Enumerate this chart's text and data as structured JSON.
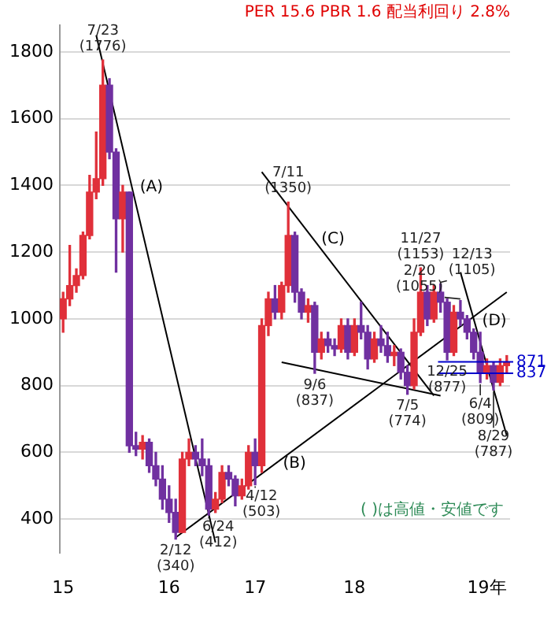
{
  "chart_data": {
    "type": "candlestick",
    "title": "PER 15.6 PBR 1.6 配当利回り 2.8%",
    "categories": [
      "15",
      null,
      null,
      null,
      null,
      null,
      null,
      null,
      null,
      null,
      null,
      null,
      null,
      null,
      null,
      null,
      "16",
      null,
      null,
      null,
      null,
      null,
      null,
      null,
      null,
      null,
      null,
      null,
      null,
      "17",
      null,
      null,
      null,
      null,
      null,
      null,
      null,
      null,
      null,
      null,
      null,
      null,
      null,
      null,
      "18",
      null,
      null,
      null,
      null,
      null,
      null,
      null,
      null,
      null,
      null,
      null,
      null,
      null,
      null,
      null,
      null,
      null,
      null,
      null,
      "19年",
      null,
      null,
      null
    ],
    "series": [
      {
        "type": "candlestick",
        "colors": [
          "#e0303a",
          "#e0303a",
          "#e0303a",
          "#e0303a",
          "#e0303a",
          "#e0303a",
          "#e0303a",
          "#7030a0",
          "#7030a0",
          "#e0303a",
          "#7030a0",
          "#7030a0",
          "#e0303a",
          "#7030a0",
          "#7030a0",
          "#7030a0",
          "#7030a0",
          "#7030a0",
          "#e0303a",
          "#e0303a",
          "#7030a0",
          "#7030a0",
          "#7030a0",
          "#e0303a",
          "#e0303a",
          "#7030a0",
          "#7030a0",
          "#e0303a",
          "#e0303a",
          "#7030a0",
          "#e0303a",
          "#e0303a",
          "#7030a0",
          "#e0303a",
          "#e0303a",
          "#7030a0",
          "#7030a0",
          "#e0303a",
          "#7030a0",
          "#e0303a",
          "#7030a0",
          "#7030a0",
          "#e0303a",
          "#7030a0",
          "#e0303a",
          "#7030a0",
          "#7030a0",
          "#e0303a",
          "#7030a0",
          "#7030a0",
          "#e0303a",
          "#7030a0",
          "#7030a0",
          "#e0303a",
          "#e0303a",
          "#7030a0",
          "#e0303a",
          "#7030a0",
          "#7030a0",
          "#e0303a",
          "#7030a0",
          "#7030a0",
          "#7030a0",
          "#7030a0",
          "#e0303a",
          "#7030a0",
          "#e0303a",
          "#e0303a"
        ],
        "ohlc": [
          [
            1000,
            1080,
            960,
            1060
          ],
          [
            1060,
            1220,
            1040,
            1100
          ],
          [
            1100,
            1150,
            1080,
            1130
          ],
          [
            1130,
            1260,
            1120,
            1250
          ],
          [
            1250,
            1430,
            1240,
            1380
          ],
          [
            1380,
            1560,
            1360,
            1420
          ],
          [
            1420,
            1776,
            1400,
            1700
          ],
          [
            1700,
            1720,
            1480,
            1500
          ],
          [
            1500,
            1510,
            1140,
            1300
          ],
          [
            1300,
            1400,
            1200,
            1380
          ],
          [
            1380,
            1380,
            600,
            620
          ],
          [
            620,
            660,
            590,
            610
          ],
          [
            610,
            650,
            580,
            630
          ],
          [
            630,
            640,
            540,
            560
          ],
          [
            560,
            600,
            500,
            520
          ],
          [
            520,
            560,
            430,
            460
          ],
          [
            460,
            500,
            390,
            420
          ],
          [
            420,
            460,
            340,
            360
          ],
          [
            360,
            600,
            360,
            580
          ],
          [
            580,
            640,
            560,
            600
          ],
          [
            600,
            620,
            560,
            580
          ],
          [
            580,
            640,
            530,
            560
          ],
          [
            560,
            580,
            412,
            430
          ],
          [
            430,
            480,
            420,
            460
          ],
          [
            460,
            560,
            450,
            540
          ],
          [
            540,
            560,
            500,
            520
          ],
          [
            520,
            530,
            440,
            470
          ],
          [
            470,
            520,
            460,
            500
          ],
          [
            500,
            620,
            490,
            600
          ],
          [
            600,
            640,
            503,
            560
          ],
          [
            560,
            1000,
            540,
            980
          ],
          [
            980,
            1080,
            950,
            1060
          ],
          [
            1060,
            1100,
            1000,
            1020
          ],
          [
            1020,
            1110,
            1000,
            1100
          ],
          [
            1100,
            1350,
            1080,
            1250
          ],
          [
            1250,
            1260,
            1050,
            1080
          ],
          [
            1080,
            1090,
            1000,
            1020
          ],
          [
            1020,
            1060,
            990,
            1040
          ],
          [
            1040,
            1050,
            837,
            900
          ],
          [
            900,
            960,
            880,
            940
          ],
          [
            940,
            960,
            900,
            920
          ],
          [
            920,
            940,
            890,
            910
          ],
          [
            910,
            1000,
            900,
            980
          ],
          [
            980,
            1000,
            880,
            900
          ],
          [
            900,
            1000,
            890,
            980
          ],
          [
            980,
            1050,
            940,
            960
          ],
          [
            960,
            980,
            850,
            880
          ],
          [
            880,
            960,
            870,
            940
          ],
          [
            940,
            980,
            900,
            920
          ],
          [
            920,
            960,
            870,
            890
          ],
          [
            890,
            920,
            860,
            900
          ],
          [
            900,
            910,
            820,
            840
          ],
          [
            840,
            860,
            774,
            800
          ],
          [
            800,
            1000,
            790,
            960
          ],
          [
            960,
            1153,
            950,
            1080
          ],
          [
            1080,
            1100,
            980,
            1000
          ],
          [
            1000,
            1100,
            990,
            1080
          ],
          [
            1080,
            1105,
            1020,
            1050
          ],
          [
            1050,
            1060,
            877,
            900
          ],
          [
            900,
            1040,
            890,
            1020
          ],
          [
            1020,
            1055,
            980,
            1000
          ],
          [
            1000,
            1010,
            940,
            960
          ],
          [
            960,
            970,
            880,
            900
          ],
          [
            900,
            960,
            809,
            840
          ],
          [
            840,
            880,
            820,
            860
          ],
          [
            860,
            870,
            787,
            810
          ],
          [
            810,
            880,
            800,
            860
          ],
          [
            860,
            890,
            840,
            871
          ]
        ]
      },
      {
        "type": "line",
        "name": "(A)",
        "color": "#000000",
        "values": [
          null,
          null,
          null,
          null,
          null,
          1850,
          null,
          null,
          null,
          null,
          null,
          null,
          null,
          null,
          null,
          null,
          null,
          null,
          null,
          null,
          null,
          null,
          null,
          330,
          null,
          null,
          null,
          null,
          null,
          null,
          null,
          null,
          null,
          null,
          null,
          null,
          null,
          null,
          null,
          null,
          null,
          null,
          null,
          null,
          null,
          null,
          null,
          null,
          null,
          null,
          null,
          null,
          null,
          null,
          null,
          null,
          null,
          null,
          null,
          null,
          null,
          null,
          null,
          null,
          null,
          null,
          null,
          null
        ]
      },
      {
        "type": "line",
        "name": "(B)",
        "color": "#000000",
        "values": [
          null,
          null,
          null,
          null,
          null,
          null,
          null,
          null,
          null,
          null,
          null,
          null,
          null,
          null,
          null,
          null,
          null,
          345,
          null,
          null,
          null,
          null,
          null,
          null,
          null,
          null,
          null,
          null,
          null,
          null,
          null,
          null,
          null,
          null,
          null,
          null,
          null,
          null,
          null,
          null,
          null,
          null,
          null,
          null,
          null,
          null,
          null,
          null,
          null,
          null,
          null,
          null,
          null,
          null,
          null,
          null,
          null,
          null,
          null,
          null,
          null,
          null,
          null,
          null,
          null,
          null,
          null,
          1080
        ]
      },
      {
        "type": "line",
        "name": "(C)",
        "color": "#000000",
        "values": [
          null,
          null,
          null,
          null,
          null,
          null,
          null,
          null,
          null,
          null,
          null,
          null,
          null,
          null,
          null,
          null,
          null,
          null,
          null,
          null,
          null,
          null,
          null,
          null,
          null,
          null,
          null,
          null,
          null,
          null,
          1440,
          null,
          null,
          null,
          null,
          null,
          null,
          null,
          null,
          null,
          null,
          null,
          null,
          null,
          null,
          null,
          null,
          null,
          null,
          null,
          null,
          null,
          null,
          null,
          null,
          null,
          770,
          null,
          null,
          null,
          null,
          null,
          null,
          null,
          null,
          null,
          null,
          null
        ]
      },
      {
        "type": "line",
        "color": "#000000",
        "values": [
          null,
          null,
          null,
          null,
          null,
          null,
          null,
          null,
          null,
          null,
          null,
          null,
          null,
          null,
          null,
          null,
          null,
          null,
          null,
          null,
          null,
          null,
          null,
          null,
          null,
          null,
          null,
          null,
          null,
          null,
          null,
          null,
          null,
          870,
          null,
          null,
          null,
          null,
          null,
          null,
          null,
          null,
          null,
          null,
          null,
          null,
          null,
          null,
          null,
          null,
          null,
          null,
          null,
          null,
          null,
          null,
          null,
          770,
          null,
          null,
          null,
          null,
          null,
          null,
          null,
          null,
          null,
          null
        ]
      },
      {
        "type": "line",
        "name": "(D)",
        "color": "#000000",
        "values": [
          null,
          null,
          null,
          null,
          null,
          null,
          null,
          null,
          null,
          null,
          null,
          null,
          null,
          null,
          null,
          null,
          null,
          null,
          null,
          null,
          null,
          null,
          null,
          null,
          null,
          null,
          null,
          null,
          null,
          null,
          null,
          null,
          null,
          null,
          null,
          null,
          null,
          null,
          null,
          null,
          null,
          null,
          null,
          null,
          null,
          null,
          null,
          null,
          null,
          null,
          null,
          null,
          null,
          null,
          null,
          null,
          null,
          null,
          null,
          null,
          1140,
          null,
          null,
          null,
          null,
          null,
          null,
          650
        ]
      }
    ],
    "ylim": [
      300,
      1880
    ],
    "yticks": [
      400,
      600,
      800,
      1000,
      1200,
      1400,
      1600,
      1800
    ],
    "grid": "y",
    "legend": false,
    "ref_lines": [
      {
        "axis": "y",
        "value": 871,
        "label": "871",
        "color": "#0000cc"
      },
      {
        "axis": "y",
        "value": 837,
        "label": "837",
        "color": "#0000cc"
      }
    ],
    "annotations": [
      {
        "text": "7/23\n(1776)",
        "y": 1776
      },
      {
        "text": "2/12\n(340)",
        "y": 340
      },
      {
        "text": "6/24\n(412)",
        "y": 412
      },
      {
        "text": "4/12\n(503)",
        "y": 503
      },
      {
        "text": "7/11\n(1350)",
        "y": 1350
      },
      {
        "text": "9/6\n(837)",
        "y": 837
      },
      {
        "text": "7/5\n(774)",
        "y": 774
      },
      {
        "text": "11/27\n(1153)",
        "y": 1153
      },
      {
        "text": "12/13\n(1105)",
        "y": 1105
      },
      {
        "text": "12/25\n(877)",
        "y": 877
      },
      {
        "text": "2/20\n(1055)",
        "y": 1055
      },
      {
        "text": "6/4\n(809)",
        "y": 809
      },
      {
        "text": "8/29\n(787)",
        "y": 787
      },
      "( )は高値・安値です"
    ]
  }
}
